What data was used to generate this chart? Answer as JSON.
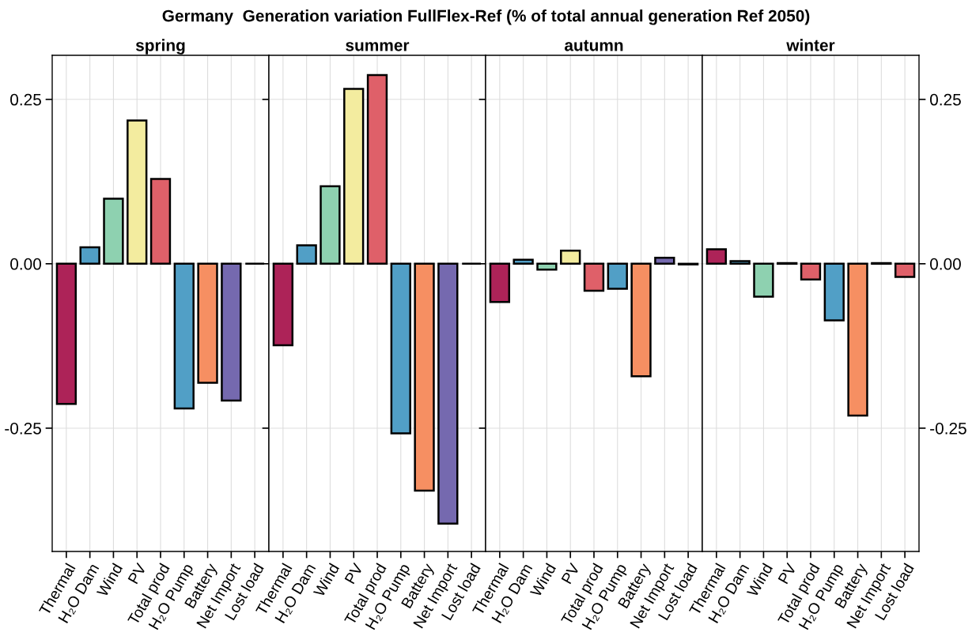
{
  "chart_data": [
    {
      "type": "bar",
      "title": "spring",
      "annotations": [
        "Germany  Generation variation FullFlex-Ref (% of total annual generation Ref 2050)"
      ],
      "categories": [
        "Thermal",
        "H₂O Dam",
        "Wind",
        "PV",
        "Total prod",
        "H₂O Pump",
        "Battery",
        "Net Import",
        "Lost load"
      ],
      "values": [
        -0.213,
        0.025,
        0.099,
        0.218,
        0.129,
        -0.22,
        -0.181,
        -0.208,
        0.0
      ],
      "colors": [
        "#ad2358",
        "#519fc6",
        "#8ed1b0",
        "#f3ec9f",
        "#df6069",
        "#519fc6",
        "#f68f62",
        "#7569af",
        null
      ],
      "ylim": [
        -0.4375,
        0.317
      ],
      "yticks": [
        {
          "value": -0.25,
          "label": "-0.25"
        },
        {
          "value": 0,
          "label": "0.00"
        },
        {
          "value": 0.25,
          "label": "0.25"
        }
      ],
      "grid": true
    },
    {
      "type": "bar",
      "title": "summer",
      "categories": [
        "Thermal",
        "H₂O Dam",
        "Wind",
        "PV",
        "Total prod",
        "H₂O Pump",
        "Battery",
        "Net Import",
        "Lost load"
      ],
      "values": [
        -0.124,
        0.028,
        0.118,
        0.266,
        0.287,
        -0.258,
        -0.345,
        -0.395,
        0.0
      ],
      "colors": [
        "#ad2358",
        "#519fc6",
        "#8ed1b0",
        "#f3ec9f",
        "#df6069",
        "#519fc6",
        "#f68f62",
        "#7569af",
        null
      ],
      "ylim": [
        -0.4375,
        0.317
      ],
      "yticks": [
        {
          "value": -0.25,
          "label": null
        },
        {
          "value": 0,
          "label": null
        },
        {
          "value": 0.25,
          "label": null
        }
      ],
      "tick_labels": "x",
      "grid": true
    },
    {
      "type": "bar",
      "title": "autumn",
      "categories": [
        "Thermal",
        "H₂O Dam",
        "Wind",
        "PV",
        "Total prod",
        "H₂O Pump",
        "Battery",
        "Net Import",
        "Lost load"
      ],
      "values": [
        -0.058,
        0.006,
        -0.009,
        0.02,
        -0.041,
        -0.038,
        -0.171,
        0.009,
        -0.001
      ],
      "colors": [
        "#ad2358",
        "#519fc6",
        "#8ed1b0",
        "#f3ec9f",
        "#df6069",
        "#519fc6",
        "#f68f62",
        "#7569af",
        "#df6069"
      ],
      "ylim": [
        -0.4375,
        0.317
      ],
      "yticks": [
        {
          "value": -0.25,
          "label": null
        },
        {
          "value": 0,
          "label": null
        },
        {
          "value": 0.25,
          "label": null
        }
      ],
      "tick_labels": "x",
      "grid": true
    },
    {
      "type": "bar",
      "title": "winter",
      "categories": [
        "Thermal",
        "H₂O Dam",
        "Wind",
        "PV",
        "Total prod",
        "H₂O Pump",
        "Battery",
        "Net Import",
        "Lost load"
      ],
      "series": [
        {
          "axis": "y2",
          "values": [
            0.022,
            0.004,
            -0.05,
            0.001,
            -0.024,
            -0.086,
            -0.231,
            0.001,
            -0.02
          ]
        }
      ],
      "colors": [
        "#ad2358",
        "#519fc6",
        "#8ed1b0",
        "#f3ec9f",
        "#df6069",
        "#519fc6",
        "#f68f62",
        "#7569af",
        "#df6069"
      ],
      "y2lim": [
        -0.4375,
        0.317
      ],
      "y2ticks": [
        {
          "value": -0.25,
          "label": "-0.25"
        },
        {
          "value": 0,
          "label": "0.00"
        },
        {
          "value": 0.25,
          "label": "0.25"
        }
      ],
      "grid": true
    }
  ]
}
